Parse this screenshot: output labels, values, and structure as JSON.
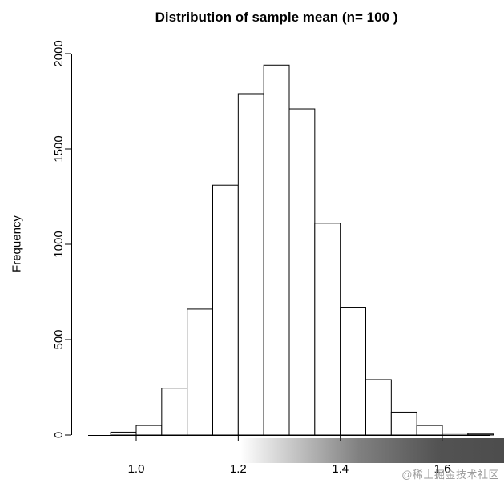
{
  "title": "Distribution of sample mean (n= 100 )",
  "watermark": "@稀土掘金技术社区",
  "chart_data": {
    "type": "bar",
    "subtype": "histogram",
    "title": "Distribution of sample mean (n= 100 )",
    "xlabel": "",
    "ylabel": "Frequency",
    "xlim": [
      0.9,
      1.7
    ],
    "ylim": [
      0,
      2000
    ],
    "grid": false,
    "legend": false,
    "bar_fill": "#ffffff",
    "bar_stroke": "#000000",
    "bin_width": 0.05,
    "bin_edges": [
      0.95,
      1.0,
      1.05,
      1.1,
      1.15,
      1.2,
      1.25,
      1.3,
      1.35,
      1.4,
      1.45,
      1.5,
      1.55,
      1.6,
      1.65,
      1.7
    ],
    "counts": [
      15,
      50,
      245,
      660,
      1310,
      1790,
      1940,
      1710,
      1110,
      670,
      290,
      120,
      50,
      10,
      5
    ],
    "x_ticks": [
      1.0,
      1.2,
      1.4,
      1.6
    ],
    "x_tick_labels": [
      "1.0",
      "1.2",
      "1.4",
      "1.6"
    ],
    "y_ticks": [
      0,
      500,
      1000,
      1500,
      2000
    ],
    "y_tick_labels": [
      "0",
      "500",
      "1000",
      "1500",
      "2000"
    ]
  }
}
